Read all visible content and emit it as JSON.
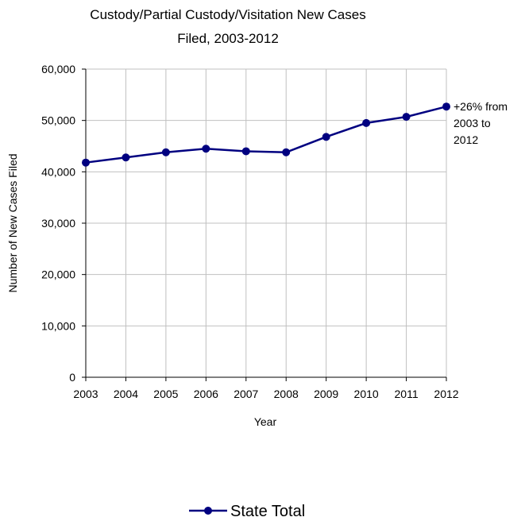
{
  "chart_data": {
    "type": "line",
    "title_lines": [
      "Custody/Partial Custody/Visitation New Cases",
      "Filed, 2003-2012"
    ],
    "xlabel": "Year",
    "ylabel": "Number of New Cases Filed",
    "ylim": [
      0,
      60000
    ],
    "yticks": [
      0,
      10000,
      20000,
      30000,
      40000,
      50000,
      60000
    ],
    "ytick_labels": [
      "0",
      "10,000",
      "20,000",
      "30,000",
      "40,000",
      "50,000",
      "60,000"
    ],
    "categories": [
      "2003",
      "2004",
      "2005",
      "2006",
      "2007",
      "2008",
      "2009",
      "2010",
      "2011",
      "2012"
    ],
    "grid": true,
    "legend_position": "bottom",
    "series": [
      {
        "name": "State Total",
        "color": "#000080",
        "values": [
          41800,
          42800,
          43800,
          44500,
          44000,
          43800,
          46800,
          49500,
          50700,
          52700
        ]
      }
    ],
    "annotation_lines": [
      "+26% from",
      "2003 to",
      "2012"
    ]
  }
}
